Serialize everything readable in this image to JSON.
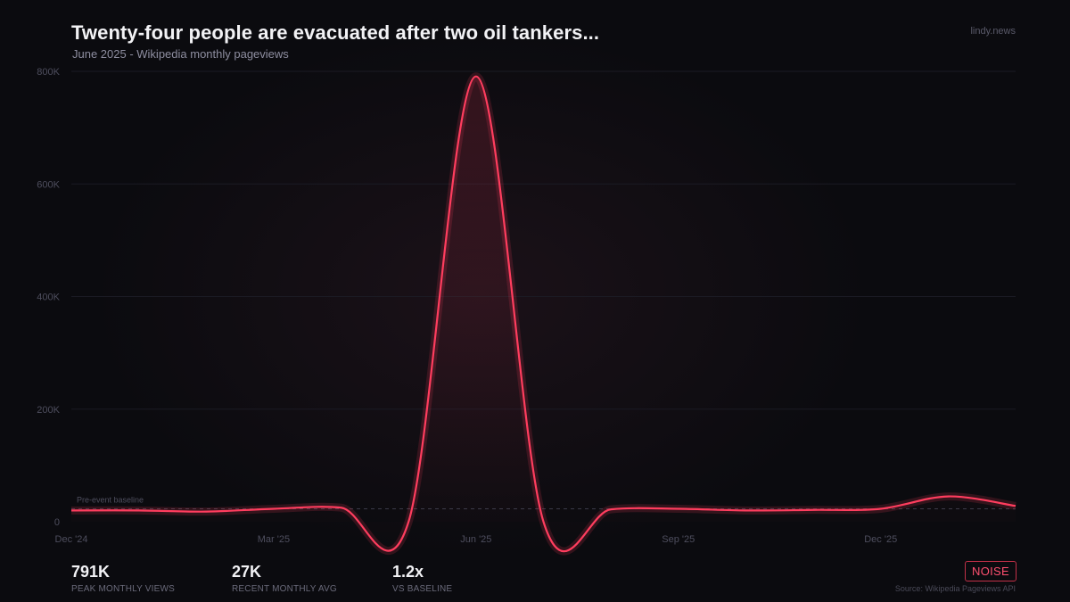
{
  "header": {
    "title": "Twenty-four people are evacuated after two oil tankers...",
    "subtitle": "June 2025  -  Wikipedia monthly pageviews",
    "brand": "lindy.news"
  },
  "stats": [
    {
      "value": "791K",
      "label": "PEAK MONTHLY VIEWS"
    },
    {
      "value": "27K",
      "label": "RECENT MONTHLY AVG"
    },
    {
      "value": "1.2x",
      "label": "VS BASELINE"
    }
  ],
  "badge": "NOISE",
  "source": "Source: Wikipedia Pageviews API",
  "colors": {
    "line": "#ff3d5e",
    "badge": "#c23048",
    "background": "#0b0b0f"
  },
  "chart_data": {
    "type": "line",
    "x": [
      "Dec '24",
      "Jan '25",
      "Feb '25",
      "Mar '25",
      "Apr '25",
      "May '25",
      "Jun '25",
      "Jul '25",
      "Aug '25",
      "Sep '25",
      "Oct '25",
      "Nov '25",
      "Dec '25",
      "Jan '26",
      "Feb '26"
    ],
    "series": [
      {
        "values": [
          20000,
          20000,
          18000,
          23000,
          25000,
          0,
          791000,
          0,
          22000,
          23000,
          20000,
          21000,
          23000,
          45000,
          28000
        ]
      }
    ],
    "x_ticks": [
      "Dec '24",
      "Mar '25",
      "Jun '25",
      "Sep '25",
      "Dec '25"
    ],
    "y_ticks": [
      "0",
      "200K",
      "400K",
      "600K",
      "800K"
    ],
    "ylim": [
      0,
      800000
    ],
    "baseline": {
      "label": "Pre-event baseline",
      "value": 23000
    },
    "grid": true
  }
}
